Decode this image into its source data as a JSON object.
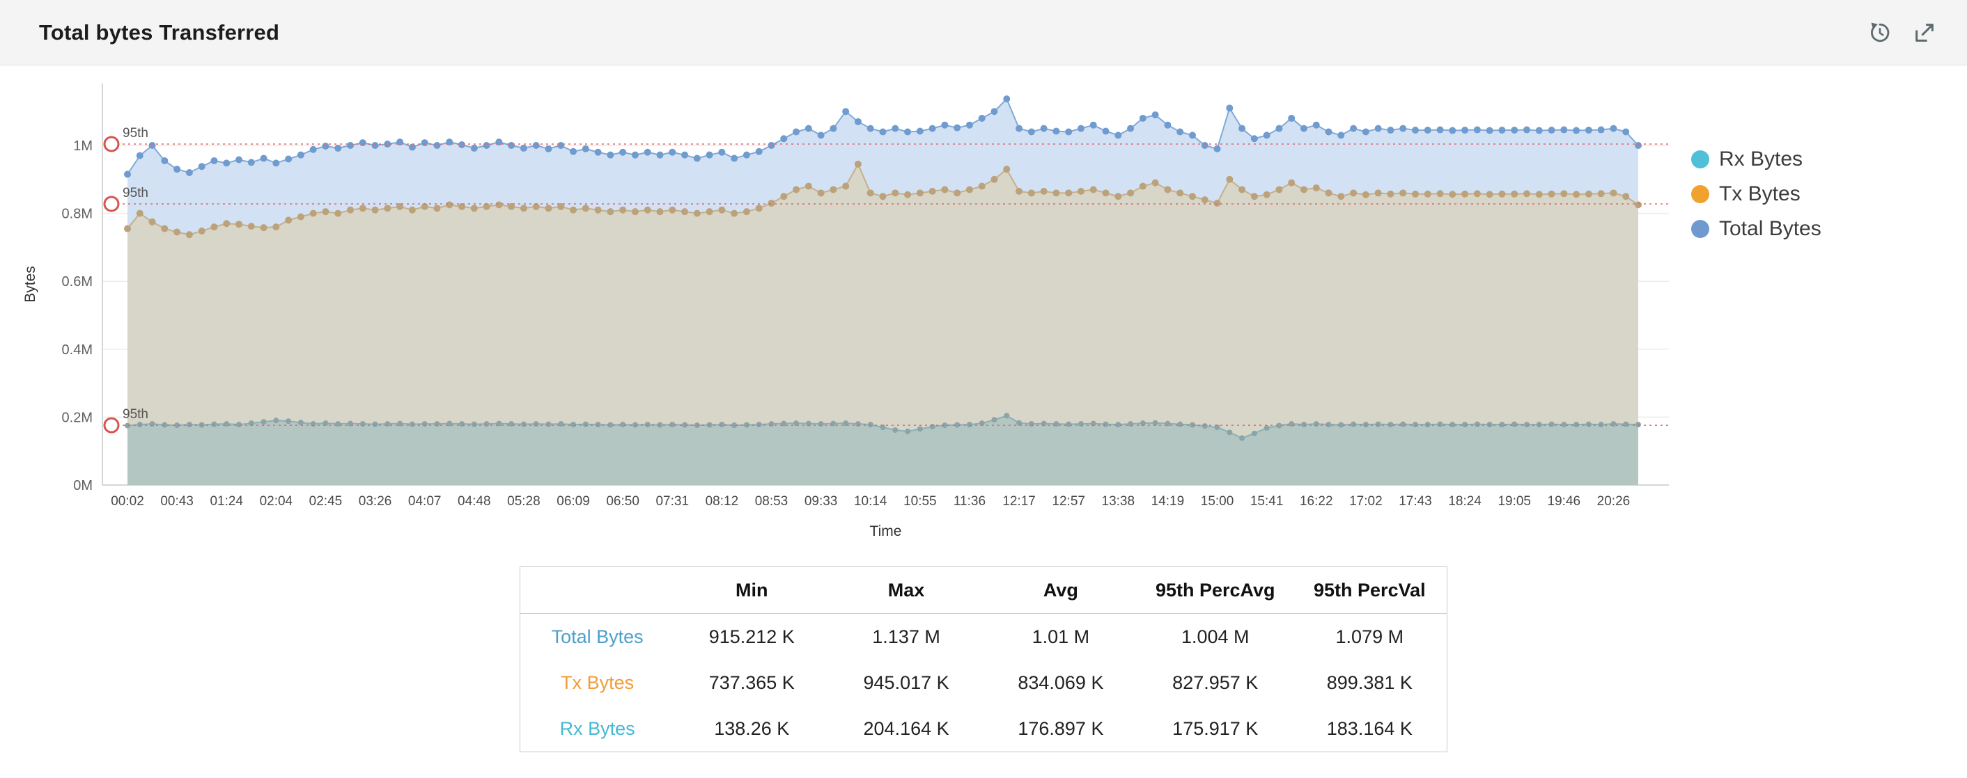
{
  "header": {
    "title": "Total bytes Transferred"
  },
  "toolbar": {
    "icons": [
      "refresh-icon",
      "expand-icon"
    ]
  },
  "chart_data": {
    "type": "area",
    "title": "Total bytes Transferred",
    "xlabel": "Time",
    "ylabel": "Bytes",
    "grid": true,
    "legend_position": "right",
    "ylim_k": [
      0,
      1182
    ],
    "y_tick_values_k": [
      0,
      200,
      400,
      600,
      800,
      1000
    ],
    "y_tick_labels": [
      "0M",
      "0.2M",
      "0.4M",
      "0.6M",
      "0.8M",
      "1M"
    ],
    "label_every": 4,
    "x_labels": [
      "00:02",
      "00:43",
      "01:24",
      "02:04",
      "02:45",
      "03:26",
      "04:07",
      "04:48",
      "05:28",
      "06:09",
      "06:50",
      "07:31",
      "08:12",
      "08:53",
      "09:33",
      "10:14",
      "10:55",
      "11:36",
      "12:17",
      "12:57",
      "13:38",
      "14:19",
      "15:00",
      "15:41",
      "16:22",
      "17:02",
      "17:43",
      "18:24",
      "19:05",
      "19:46",
      "20:26"
    ],
    "series": [
      {
        "name": "Rx Bytes",
        "color": "#4fc0d8",
        "line_color": "#86b2b6",
        "marker_color": "#8aa4a8",
        "fill_color": "#b4c6c1",
        "values_k": [
          175,
          178,
          180,
          177,
          176,
          178,
          177,
          179,
          180,
          178,
          182,
          186,
          190,
          188,
          184,
          180,
          182,
          180,
          181,
          180,
          179,
          180,
          181,
          179,
          180,
          180,
          181,
          180,
          179,
          180,
          181,
          180,
          179,
          180,
          179,
          180,
          178,
          179,
          178,
          177,
          178,
          177,
          178,
          177,
          178,
          177,
          176,
          177,
          178,
          176,
          177,
          178,
          180,
          181,
          182,
          181,
          180,
          181,
          182,
          180,
          178,
          170,
          162,
          158,
          165,
          172,
          176,
          177,
          178,
          182,
          192,
          204.164,
          183,
          180,
          181,
          180,
          179,
          180,
          181,
          179,
          178,
          180,
          182,
          183,
          181,
          179,
          177,
          174,
          170,
          155,
          138.26,
          152,
          168,
          175,
          180,
          178,
          180,
          178,
          177,
          179,
          178,
          179,
          178,
          179,
          178,
          178,
          179,
          178,
          178,
          179,
          178,
          178,
          179,
          178,
          178,
          179,
          178,
          178,
          179,
          178,
          180,
          179,
          178
        ]
      },
      {
        "name": "Tx Bytes",
        "color": "#f0a22e",
        "line_color": "#c5b089",
        "marker_color": "#bba27b",
        "fill_color": "#d8d5c9",
        "values_k": [
          755,
          800,
          775,
          755,
          745,
          737.365,
          748,
          760,
          770,
          768,
          762,
          758,
          760,
          780,
          790,
          800,
          805,
          800,
          810,
          815,
          810,
          815,
          820,
          810,
          820,
          815,
          825,
          820,
          815,
          820,
          825,
          820,
          815,
          820,
          815,
          820,
          810,
          815,
          810,
          805,
          810,
          805,
          810,
          805,
          810,
          805,
          800,
          805,
          810,
          800,
          805,
          815,
          830,
          850,
          870,
          880,
          860,
          870,
          880,
          945.017,
          860,
          850,
          860,
          855,
          860,
          865,
          870,
          860,
          870,
          880,
          900,
          930,
          865,
          860,
          865,
          860,
          860,
          865,
          870,
          860,
          850,
          860,
          880,
          890,
          870,
          860,
          850,
          840,
          830,
          900,
          870,
          850,
          855,
          870,
          890,
          870,
          875,
          860,
          850,
          860,
          855,
          860,
          857,
          860,
          857,
          857,
          858,
          856,
          857,
          858,
          856,
          857,
          857,
          858,
          856,
          857,
          858,
          856,
          857,
          858,
          860,
          850,
          825
        ]
      },
      {
        "name": "Total Bytes",
        "color": "#6f9ad0",
        "line_color": "#80a8d8",
        "marker_color": "#6f9bce",
        "fill_color": "#d2e2f4",
        "values_k": [
          915.212,
          970,
          1000,
          955,
          930,
          920,
          938,
          955,
          948,
          958,
          950,
          962,
          948,
          960,
          972,
          988,
          998,
          992,
          1000,
          1008,
          1000,
          1004,
          1010,
          995,
          1008,
          1000,
          1010,
          1002,
          992,
          1000,
          1010,
          1000,
          992,
          1000,
          990,
          1000,
          982,
          990,
          980,
          972,
          980,
          972,
          980,
          972,
          980,
          972,
          962,
          972,
          980,
          962,
          972,
          982,
          1000,
          1020,
          1040,
          1050,
          1030,
          1050,
          1100,
          1070,
          1050,
          1040,
          1050,
          1040,
          1042,
          1050,
          1060,
          1052,
          1060,
          1080,
          1100,
          1137,
          1050,
          1040,
          1050,
          1042,
          1040,
          1050,
          1060,
          1042,
          1030,
          1050,
          1080,
          1090,
          1060,
          1040,
          1030,
          1000,
          990,
          1110,
          1050,
          1020,
          1030,
          1050,
          1080,
          1050,
          1060,
          1040,
          1030,
          1050,
          1040,
          1050,
          1045,
          1050,
          1045,
          1045,
          1046,
          1044,
          1045,
          1046,
          1044,
          1045,
          1045,
          1046,
          1044,
          1045,
          1046,
          1044,
          1045,
          1046,
          1050,
          1040,
          1000
        ]
      }
    ],
    "percentile_lines": [
      {
        "label": "95th",
        "value_k": 1004,
        "color": "#d9534f"
      },
      {
        "label": "95th",
        "value_k": 827.957,
        "color": "#d9534f"
      },
      {
        "label": "95th",
        "value_k": 175.917,
        "color": "#d9534f"
      }
    ]
  },
  "stats_table": {
    "headers": [
      "",
      "Min",
      "Max",
      "Avg",
      "95th PercAvg",
      "95th PercVal"
    ],
    "rows": [
      {
        "label": "Total Bytes",
        "color": "#4d9fca",
        "values": [
          "915.212 K",
          "1.137 M",
          "1.01 M",
          "1.004 M",
          "1.079 M"
        ]
      },
      {
        "label": "Tx Bytes",
        "color": "#f29c38",
        "values": [
          "737.365 K",
          "945.017 K",
          "834.069 K",
          "827.957 K",
          "899.381 K"
        ]
      },
      {
        "label": "Rx Bytes",
        "color": "#45b8d6",
        "values": [
          "138.26 K",
          "204.164 K",
          "176.897 K",
          "175.917 K",
          "183.164 K"
        ]
      }
    ]
  }
}
